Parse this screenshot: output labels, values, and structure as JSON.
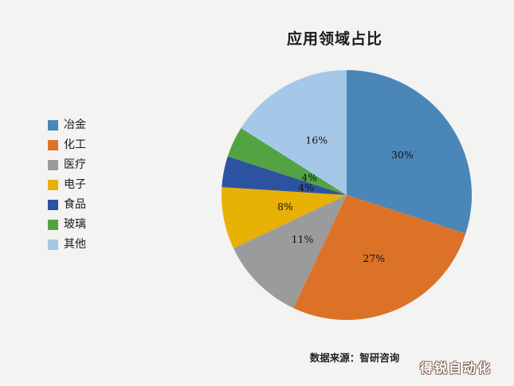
{
  "page": {
    "title": "应用领域占比",
    "source_note": "数据来源：智研咨询",
    "watermark": "得锐自动化"
  },
  "chart_data": {
    "type": "pie",
    "title": "应用领域占比",
    "legend_position": "left",
    "label_format": "percent",
    "start_angle_deg": 0,
    "direction": "clockwise",
    "categories": [
      "冶金",
      "化工",
      "医疗",
      "电子",
      "食品",
      "玻璃",
      "其他"
    ],
    "values": [
      30,
      27,
      11,
      8,
      4,
      4,
      16
    ],
    "slices": [
      {
        "label": "冶金",
        "value": 30,
        "percent_label": "30%",
        "color": "#4a86b8"
      },
      {
        "label": "化工",
        "value": 27,
        "percent_label": "27%",
        "color": "#dc7227"
      },
      {
        "label": "医疗",
        "value": 11,
        "percent_label": "11%",
        "color": "#9b9b9b"
      },
      {
        "label": "电子",
        "value": 8,
        "percent_label": "8%",
        "color": "#e7b105"
      },
      {
        "label": "食品",
        "value": 4,
        "percent_label": "4%",
        "color": "#2d53a0"
      },
      {
        "label": "玻璃",
        "value": 4,
        "percent_label": "4%",
        "color": "#53a344"
      },
      {
        "label": "其他",
        "value": 16,
        "percent_label": "16%",
        "color": "#a6c8e8"
      }
    ]
  }
}
